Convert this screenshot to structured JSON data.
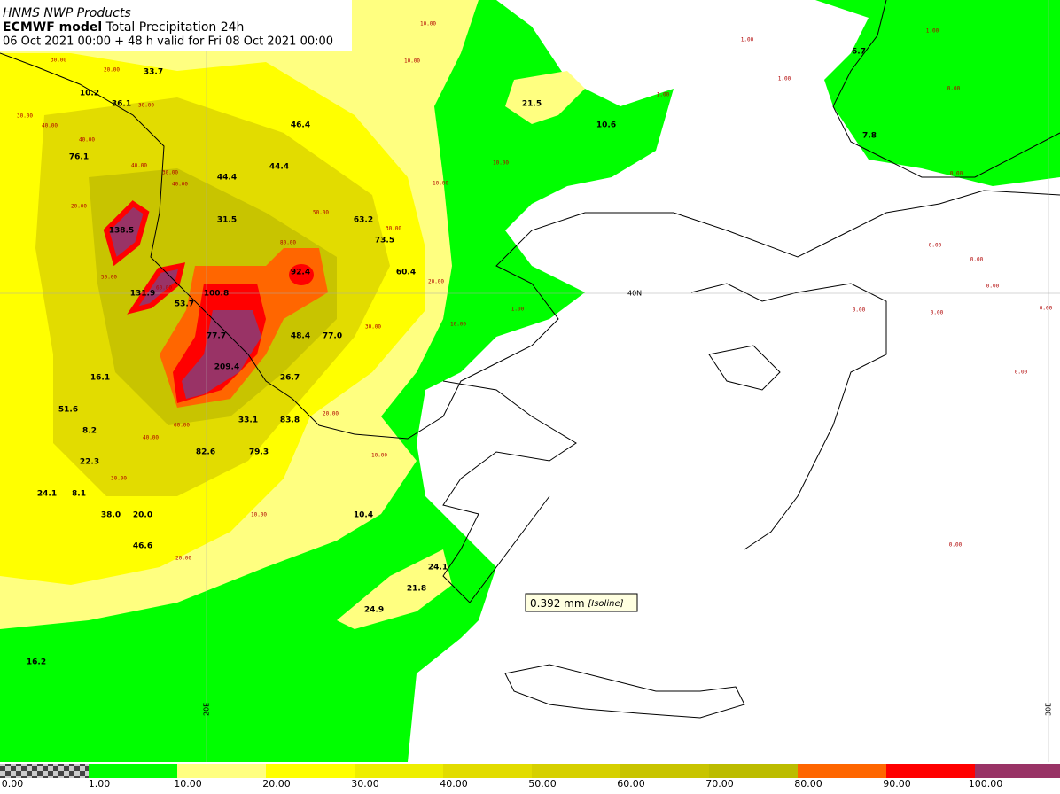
{
  "header": {
    "agency": "HNMS NWP Products",
    "model": "ECMWF model",
    "product": "Total Precipitation 24h",
    "validity": "06 Oct 2021 00:00 + 48 h valid for Fri 08 Oct 2021 00:00"
  },
  "grid_labels": [
    "40N",
    "20E",
    "30E"
  ],
  "tooltip": {
    "value": "0.392 mm",
    "kind": "[Isoline]"
  },
  "legend": {
    "labels": [
      "0.00",
      "1.00",
      "10.00",
      "20.00",
      "30.00",
      "40.00",
      "50.00",
      "60.00",
      "70.00",
      "80.00",
      "90.00",
      "100.00"
    ],
    "colors": [
      "#00ff00",
      "#ffff80",
      "#ffff00",
      "#eeee00",
      "#e2dc00",
      "#d6d000",
      "#c8c400",
      "#bcbc00",
      "#ff6600",
      "#ff0000",
      "#993366"
    ]
  },
  "point_values": [
    "33.7",
    "10.2",
    "36.1",
    "46.4",
    "76.1",
    "44.4",
    "44.4",
    "31.5",
    "63.2",
    "138.5",
    "73.5",
    "92.4",
    "60.4",
    "131.9",
    "100.8",
    "53.7",
    "77.7",
    "48.4",
    "77.0",
    "209.4",
    "16.1",
    "26.7",
    "51.6",
    "33.1",
    "83.8",
    "8.2",
    "82.6",
    "79.3",
    "22.3",
    "24.1",
    "8.1",
    "38.0",
    "20.0",
    "10.4",
    "46.6",
    "24.1",
    "21.8",
    "24.9",
    "16.2",
    "6.7",
    "7.8",
    "21.5",
    "10.6"
  ],
  "isoline_labels": [
    "30.00",
    "20.00",
    "30.00",
    "30.00",
    "40.00",
    "40.00",
    "40.00",
    "20.00",
    "30.00",
    "40.00",
    "50.00",
    "50.00",
    "60.00",
    "80.00",
    "60.00",
    "30.00",
    "20.00",
    "10.00",
    "10.00",
    "10.00",
    "10.00",
    "1.00",
    "1.00",
    "1.00",
    "1.00",
    "0.00",
    "0.00",
    "0.00",
    "0.00",
    "0.00",
    "0.00",
    "0.00",
    "0.00",
    "1.00",
    "10.00",
    "10.00",
    "30.00",
    "20.00",
    "40.00",
    "30.00",
    "20.00",
    "10.00",
    "0.00",
    "0.00"
  ]
}
